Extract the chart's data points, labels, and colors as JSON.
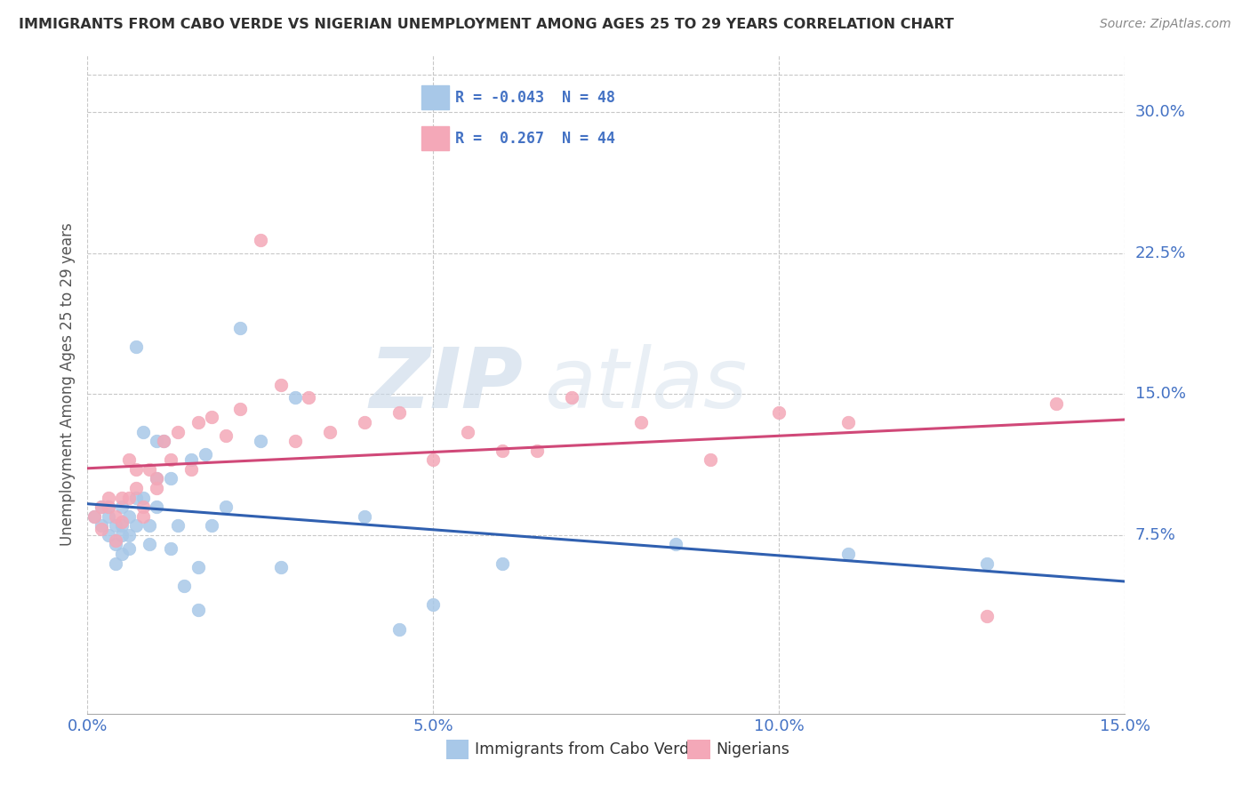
{
  "title": "IMMIGRANTS FROM CABO VERDE VS NIGERIAN UNEMPLOYMENT AMONG AGES 25 TO 29 YEARS CORRELATION CHART",
  "source": "Source: ZipAtlas.com",
  "xlim": [
    0.0,
    0.15
  ],
  "ylim": [
    -0.02,
    0.33
  ],
  "ytick_vals": [
    0.075,
    0.15,
    0.225,
    0.3
  ],
  "xtick_vals": [
    0.0,
    0.05,
    0.1,
    0.15
  ],
  "blue_color": "#a8c8e8",
  "pink_color": "#f4a8b8",
  "blue_line_color": "#3060b0",
  "pink_line_color": "#d04878",
  "legend_text_color": "#4472c4",
  "title_color": "#303030",
  "axis_tick_color": "#4472c4",
  "watermark_zip": "ZIP",
  "watermark_atlas": "atlas",
  "ylabel": "Unemployment Among Ages 25 to 29 years",
  "xlabel_label1": "Immigrants from Cabo Verde",
  "xlabel_label2": "Nigerians",
  "cabo_verde_x": [
    0.001,
    0.002,
    0.002,
    0.003,
    0.003,
    0.003,
    0.004,
    0.004,
    0.004,
    0.005,
    0.005,
    0.005,
    0.005,
    0.006,
    0.006,
    0.006,
    0.007,
    0.007,
    0.007,
    0.008,
    0.008,
    0.009,
    0.009,
    0.01,
    0.01,
    0.01,
    0.011,
    0.012,
    0.012,
    0.013,
    0.014,
    0.015,
    0.016,
    0.016,
    0.017,
    0.018,
    0.02,
    0.022,
    0.025,
    0.028,
    0.03,
    0.04,
    0.045,
    0.05,
    0.06,
    0.085,
    0.11,
    0.13
  ],
  "cabo_verde_y": [
    0.085,
    0.09,
    0.08,
    0.09,
    0.085,
    0.075,
    0.08,
    0.07,
    0.06,
    0.09,
    0.08,
    0.075,
    0.065,
    0.085,
    0.075,
    0.068,
    0.175,
    0.095,
    0.08,
    0.13,
    0.095,
    0.08,
    0.07,
    0.125,
    0.105,
    0.09,
    0.125,
    0.105,
    0.068,
    0.08,
    0.048,
    0.115,
    0.058,
    0.035,
    0.118,
    0.08,
    0.09,
    0.185,
    0.125,
    0.058,
    0.148,
    0.085,
    0.025,
    0.038,
    0.06,
    0.07,
    0.065,
    0.06
  ],
  "nigerian_x": [
    0.001,
    0.002,
    0.002,
    0.003,
    0.003,
    0.004,
    0.004,
    0.005,
    0.005,
    0.006,
    0.006,
    0.007,
    0.007,
    0.008,
    0.008,
    0.009,
    0.01,
    0.01,
    0.011,
    0.012,
    0.013,
    0.015,
    0.016,
    0.018,
    0.02,
    0.022,
    0.025,
    0.028,
    0.03,
    0.032,
    0.035,
    0.04,
    0.045,
    0.05,
    0.055,
    0.06,
    0.065,
    0.07,
    0.08,
    0.09,
    0.1,
    0.11,
    0.13,
    0.14
  ],
  "nigerian_y": [
    0.085,
    0.09,
    0.078,
    0.095,
    0.09,
    0.085,
    0.072,
    0.095,
    0.082,
    0.115,
    0.095,
    0.11,
    0.1,
    0.09,
    0.085,
    0.11,
    0.105,
    0.1,
    0.125,
    0.115,
    0.13,
    0.11,
    0.135,
    0.138,
    0.128,
    0.142,
    0.232,
    0.155,
    0.125,
    0.148,
    0.13,
    0.135,
    0.14,
    0.115,
    0.13,
    0.12,
    0.12,
    0.148,
    0.135,
    0.115,
    0.14,
    0.135,
    0.032,
    0.145
  ]
}
